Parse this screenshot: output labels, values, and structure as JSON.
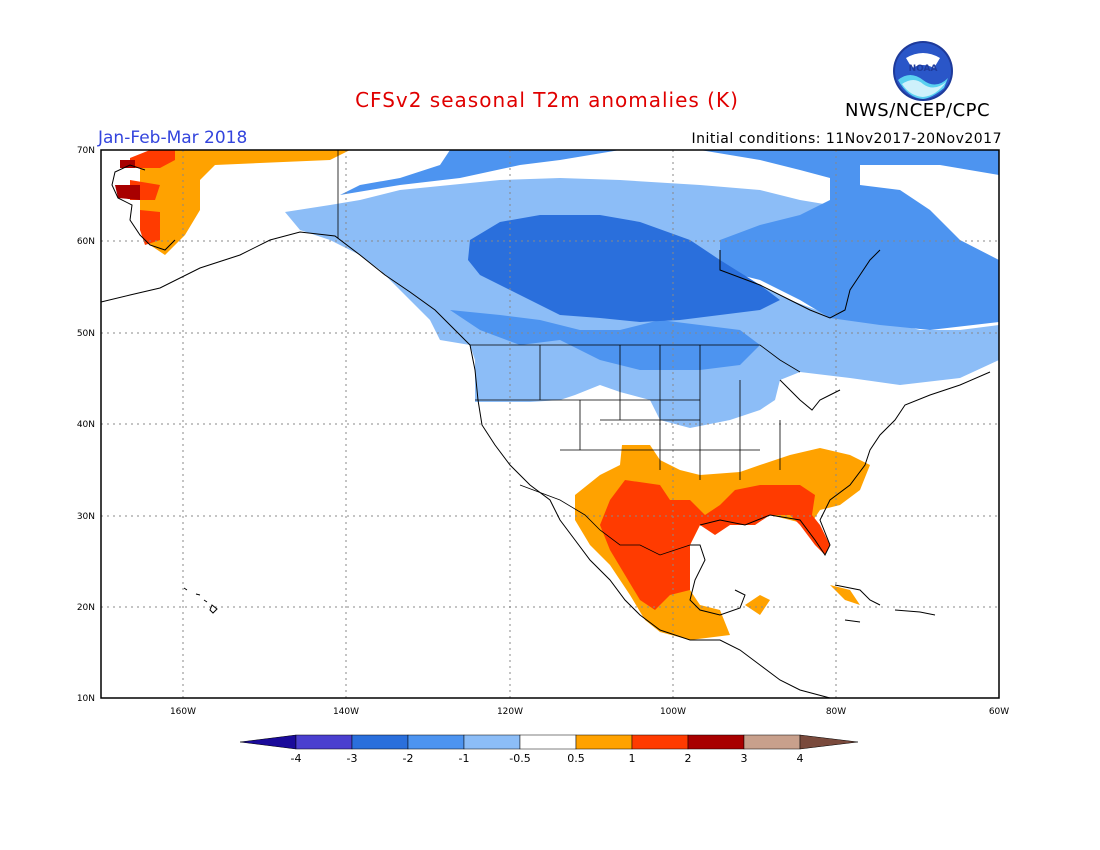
{
  "header": {
    "title": "CFSv2 seasonal T2m anomalies (K)",
    "period": "Jan-Feb-Mar 2018",
    "initial_conditions": "Initial conditions: 11Nov2017-20Nov2017",
    "agency": "NWS/NCEP/CPC",
    "logo_text": "NOAA"
  },
  "map": {
    "projection": "lat-lon",
    "lon_range": [
      "170W",
      "60W"
    ],
    "lat_range": [
      "10N",
      "70N"
    ],
    "lon_ticks": [
      "160W",
      "140W",
      "120W",
      "100W",
      "80W",
      "60W"
    ],
    "lat_ticks": [
      "70N",
      "60N",
      "50N",
      "40N",
      "30N",
      "20N",
      "10N"
    ],
    "regions": [
      {
        "name": "Canada interior",
        "anomaly_class": "-3 to -2",
        "color": "#2a6fdc"
      },
      {
        "name": "Canada / N. US",
        "anomaly_class": "-2 to -1",
        "color": "#4d94f0"
      },
      {
        "name": "Northern US fringe",
        "anomaly_class": "-1 to -0.5",
        "color": "#8cbdf7"
      },
      {
        "name": "Southern US / Mexico",
        "anomaly_class": "0.5 to 1",
        "color": "#ffa200"
      },
      {
        "name": "Texas / Gulf / Florida",
        "anomaly_class": "1 to 2",
        "color": "#ff3b00"
      },
      {
        "name": "Western Alaska",
        "anomaly_class": "2 to 3",
        "color": "#a80000"
      }
    ]
  },
  "colorbar": {
    "labels": [
      "-4",
      "-3",
      "-2",
      "-1",
      "-0.5",
      "0.5",
      "1",
      "2",
      "3",
      "4"
    ],
    "colors": [
      "#1a0a9a",
      "#4a3fcf",
      "#2a6fdc",
      "#4d94f0",
      "#8cbdf7",
      "#ffffff",
      "#ffa200",
      "#ff3b00",
      "#a80000",
      "#c8a08c",
      "#7a4a3c"
    ]
  }
}
